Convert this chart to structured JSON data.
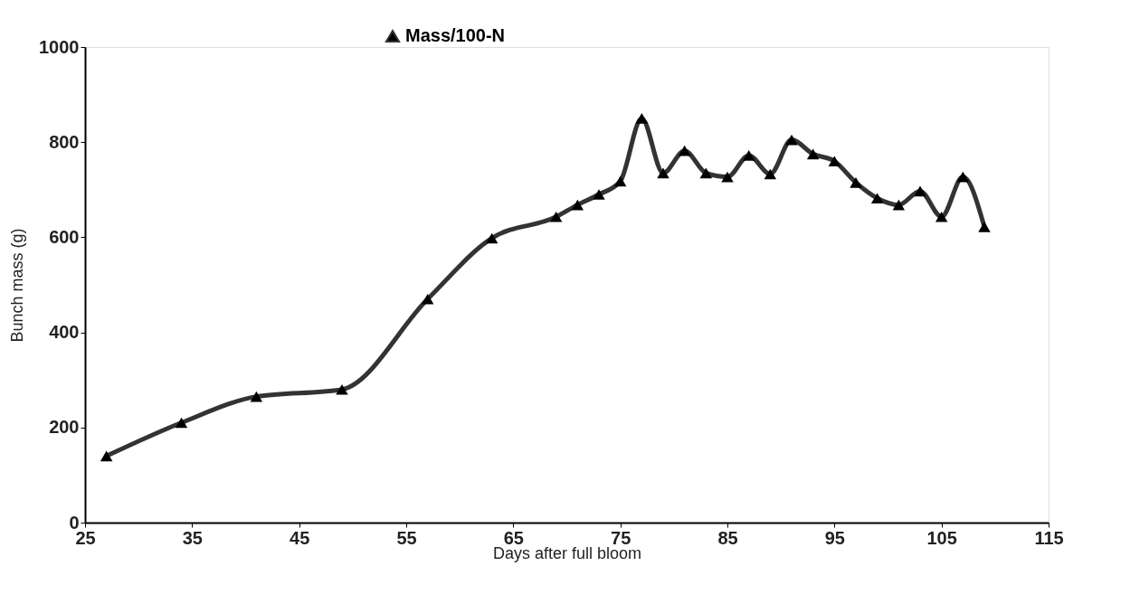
{
  "chart_data": {
    "type": "line",
    "xlabel": "Days after full bloom",
    "ylabel": "Bunch mass (g)",
    "x": [
      27,
      34,
      41,
      49,
      57,
      63,
      69,
      71,
      73,
      75,
      77,
      79,
      81,
      83,
      85,
      87,
      89,
      91,
      93,
      95,
      97,
      99,
      101,
      103,
      105,
      107,
      109
    ],
    "series": [
      {
        "name": "Mass/100-N",
        "color": "#333333",
        "values": [
          140,
          210,
          265,
          280,
          470,
          598,
          643,
          668,
          690,
          718,
          850,
          735,
          782,
          735,
          727,
          772,
          733,
          805,
          775,
          760,
          715,
          682,
          668,
          697,
          643,
          727,
          622
        ]
      }
    ],
    "xlim": [
      25,
      115
    ],
    "xticks": [
      25,
      35,
      45,
      55,
      65,
      75,
      85,
      95,
      105,
      115
    ],
    "ylim": [
      0,
      1000
    ],
    "yticks": [
      0,
      200,
      400,
      600,
      800,
      1000
    ],
    "grid": false,
    "legend": "top",
    "marker": "triangle",
    "line_style": "solid"
  }
}
